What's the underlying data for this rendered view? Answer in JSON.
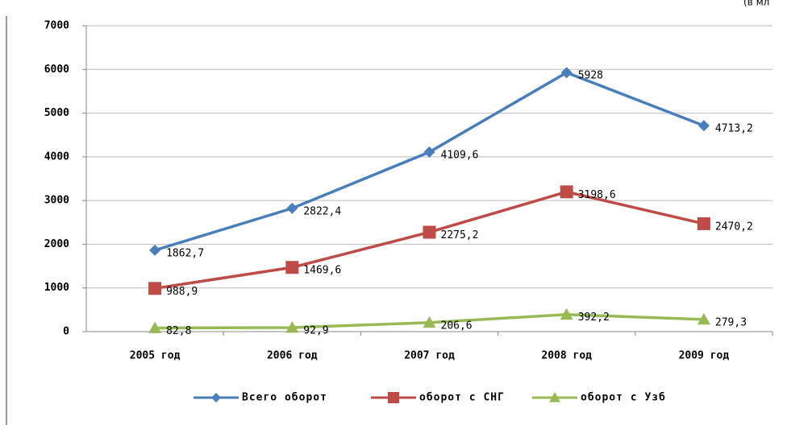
{
  "chart_data": {
    "type": "line",
    "annotation": "(в мл",
    "categories": [
      "2005 год",
      "2006 год",
      "2007 год",
      "2008 год",
      "2009 год"
    ],
    "series": [
      {
        "name": "Всего оборот",
        "color": "#4a7ebb",
        "marker": "diamond",
        "values": [
          1862.7,
          2822.4,
          4109.6,
          5928,
          4713.2
        ],
        "value_labels": [
          "1862,7",
          "2822,4",
          "4109,6",
          "5928",
          "4713,2"
        ]
      },
      {
        "name": "оборот с СНГ",
        "color": "#be4b48",
        "marker": "square",
        "values": [
          988.9,
          1469.6,
          2275.2,
          3198.6,
          2470.2
        ],
        "value_labels": [
          "988,9",
          "1469,6",
          "2275,2",
          "3198,6",
          "2470,2"
        ]
      },
      {
        "name": "оборот с Узб",
        "color": "#98b954",
        "marker": "triangle",
        "values": [
          82.8,
          92.9,
          206.6,
          392.2,
          279.3
        ],
        "value_labels": [
          "82,8",
          "92,9",
          "206,6",
          "392,2",
          "279,3"
        ]
      }
    ],
    "ylim": [
      0,
      7000
    ],
    "yticks": [
      0,
      1000,
      2000,
      3000,
      4000,
      5000,
      6000,
      7000
    ],
    "grid": true,
    "legend": "bottom"
  }
}
